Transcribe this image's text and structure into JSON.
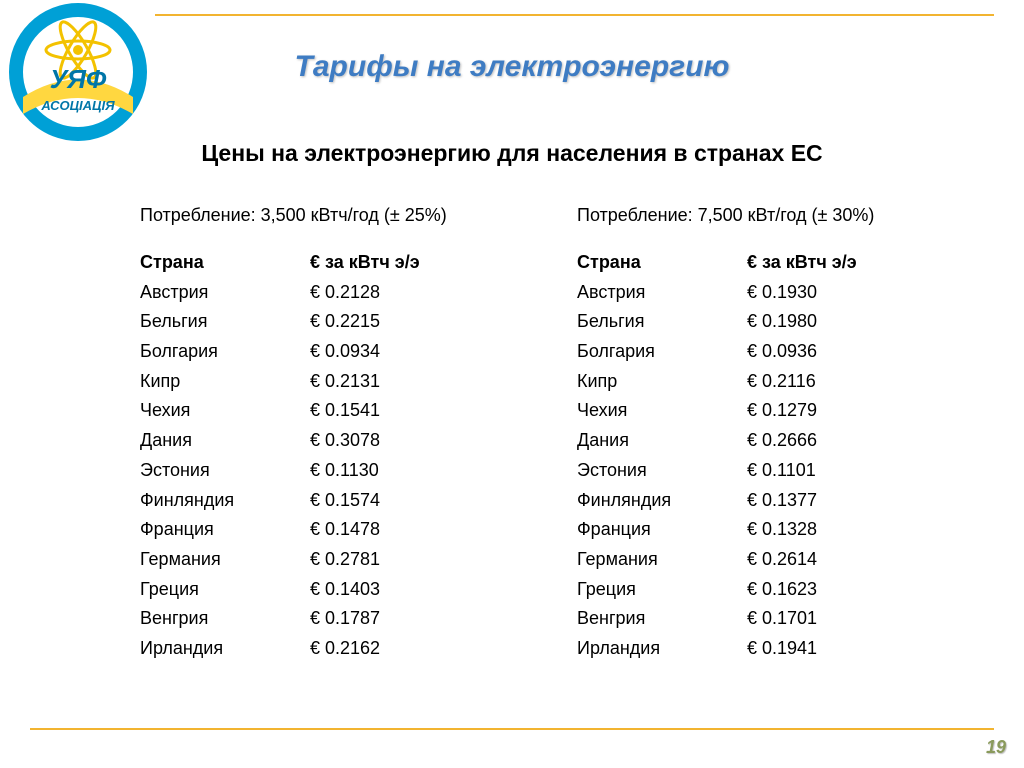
{
  "logo": {
    "top_text": "УЯФ",
    "bottom_text": "АСОЦІАЦІЯ",
    "ring_color": "#00a0d6",
    "band_color": "#ffd740",
    "star_color": "#f3c200"
  },
  "title": "Тарифы на электроэнергию",
  "subtitle": "Цены на электроэнергию для населения в странах ЕС",
  "headers": {
    "country": "Страна",
    "price": "€ за кВтч э/э"
  },
  "left": {
    "consumption": "Потребление: 3,500 кВтч/год (± 25%)",
    "rows": [
      {
        "country": "Австрия",
        "price": "€ 0.2128"
      },
      {
        "country": "Бельгия",
        "price": "€ 0.2215"
      },
      {
        "country": "Болгария",
        "price": "€ 0.0934"
      },
      {
        "country": "Кипр",
        "price": "€ 0.2131"
      },
      {
        "country": "Чехия",
        "price": "€ 0.1541"
      },
      {
        "country": "Дания",
        "price": "€ 0.3078"
      },
      {
        "country": "Эстония",
        "price": "€ 0.1130"
      },
      {
        "country": "Финляндия",
        "price": "€ 0.1574"
      },
      {
        "country": "Франция",
        "price": "€ 0.1478"
      },
      {
        "country": "Германия",
        "price": "€ 0.2781"
      },
      {
        "country": "Греция",
        "price": "€ 0.1403"
      },
      {
        "country": "Венгрия",
        "price": "€ 0.1787"
      },
      {
        "country": "Ирландия",
        "price": "€ 0.2162"
      }
    ]
  },
  "right": {
    "consumption": "Потребление: 7,500 кВт/год (± 30%)",
    "rows": [
      {
        "country": "Австрия",
        "price": "€ 0.1930"
      },
      {
        "country": "Бельгия",
        "price": "€ 0.1980"
      },
      {
        "country": "Болгария",
        "price": "€ 0.0936"
      },
      {
        "country": "Кипр",
        "price": "€ 0.2116"
      },
      {
        "country": "Чехия",
        "price": "€ 0.1279"
      },
      {
        "country": "Дания",
        "price": "€ 0.2666"
      },
      {
        "country": "Эстония",
        "price": "€ 0.1101"
      },
      {
        "country": "Финляндия",
        "price": "€ 0.1377"
      },
      {
        "country": "Франция",
        "price": "€ 0.1328"
      },
      {
        "country": "Германия",
        "price": "€ 0.2614"
      },
      {
        "country": "Греция",
        "price": "€ 0.1623"
      },
      {
        "country": "Венгрия",
        "price": "€ 0.1701"
      },
      {
        "country": "Ирландия",
        "price": "€ 0.1941"
      }
    ]
  },
  "page_number": "19",
  "style": {
    "rule_color": "#f2b430",
    "title_color": "#3e7cc3",
    "text_color": "#000000",
    "pagenum_color": "#8a9a5b",
    "title_fontsize": 30,
    "subtitle_fontsize": 23,
    "body_fontsize": 18
  }
}
